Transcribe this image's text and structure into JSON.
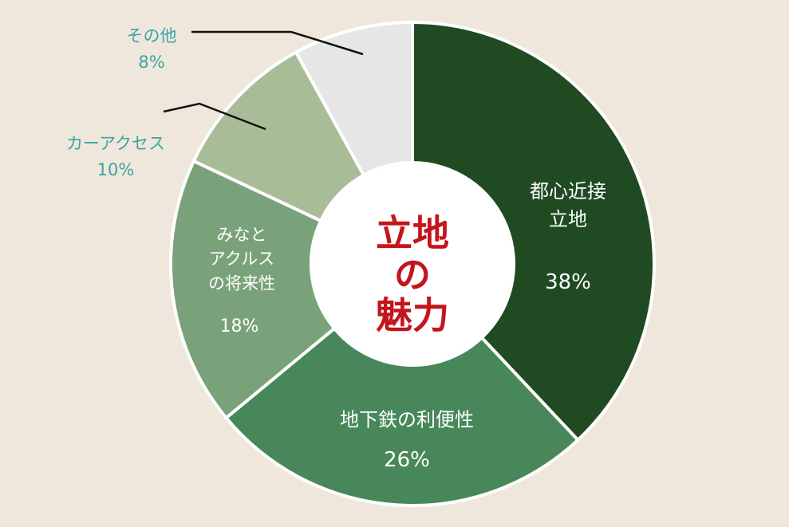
{
  "chart_data": {
    "type": "donut",
    "title": "立地\nの\n魅力",
    "categories": [
      "都心近接\n立地",
      "地下鉄の利便性",
      "みなと\nアクルス\nの将来性",
      "カーアクセス",
      "その他"
    ],
    "values": [
      38,
      26,
      18,
      10,
      8
    ],
    "value_labels": [
      "38%",
      "26%",
      "18%",
      "10%",
      "8%"
    ],
    "colors": [
      "#1f4a22",
      "#48875a",
      "#7aa27a",
      "#a9bc98",
      "#e6e6e6"
    ]
  }
}
